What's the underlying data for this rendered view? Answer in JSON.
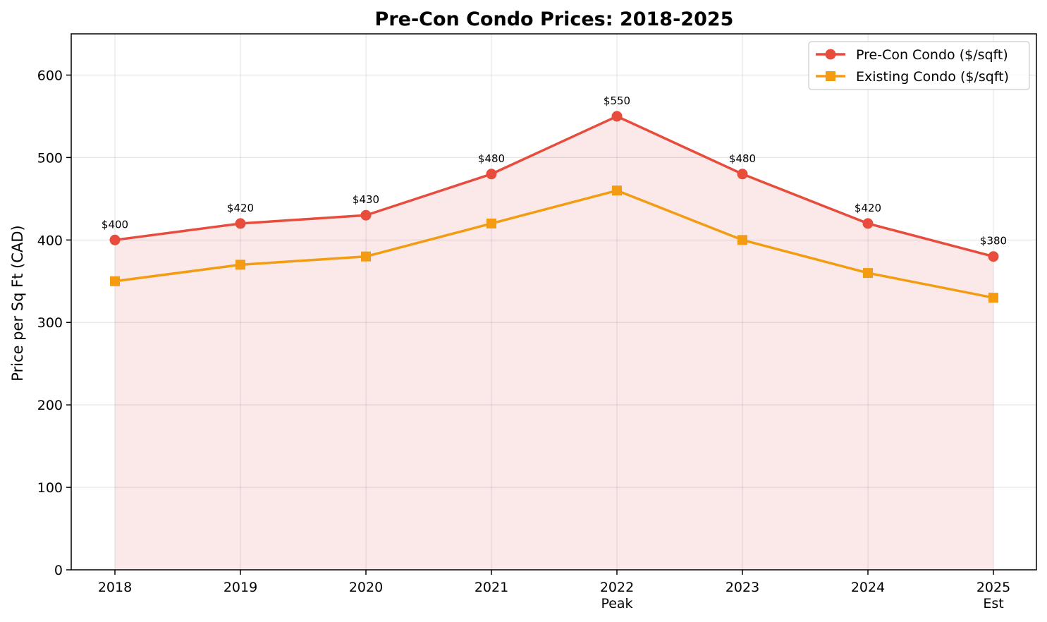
{
  "chart_data": {
    "type": "line",
    "title": "Pre-Con Condo Prices: 2018-2025",
    "ylabel": "Price per Sq Ft (CAD)",
    "xlabel": "",
    "categories": [
      "2018",
      "2019",
      "2020",
      "2021",
      "2022",
      "2023",
      "2024",
      "2025"
    ],
    "category_sublabels": [
      "",
      "",
      "",
      "",
      "Peak",
      "",
      "",
      "Est"
    ],
    "ylim": [
      0,
      650
    ],
    "yticks": [
      0,
      100,
      200,
      300,
      400,
      500,
      600
    ],
    "grid": true,
    "legend_position": "top-right",
    "series": [
      {
        "name": "Pre-Con Condo ($/sqft)",
        "values": [
          400,
          420,
          430,
          480,
          550,
          480,
          420,
          380
        ],
        "data_labels": [
          "$400",
          "$420",
          "$430",
          "$480",
          "$550",
          "$480",
          "$420",
          "$380"
        ],
        "color": "#e74c3c",
        "marker": "circle",
        "fill": true,
        "fill_color": "#fbe9ea"
      },
      {
        "name": "Existing Condo ($/sqft)",
        "values": [
          350,
          370,
          380,
          420,
          460,
          400,
          360,
          330
        ],
        "color": "#f39c12",
        "marker": "square",
        "fill": false
      }
    ]
  }
}
